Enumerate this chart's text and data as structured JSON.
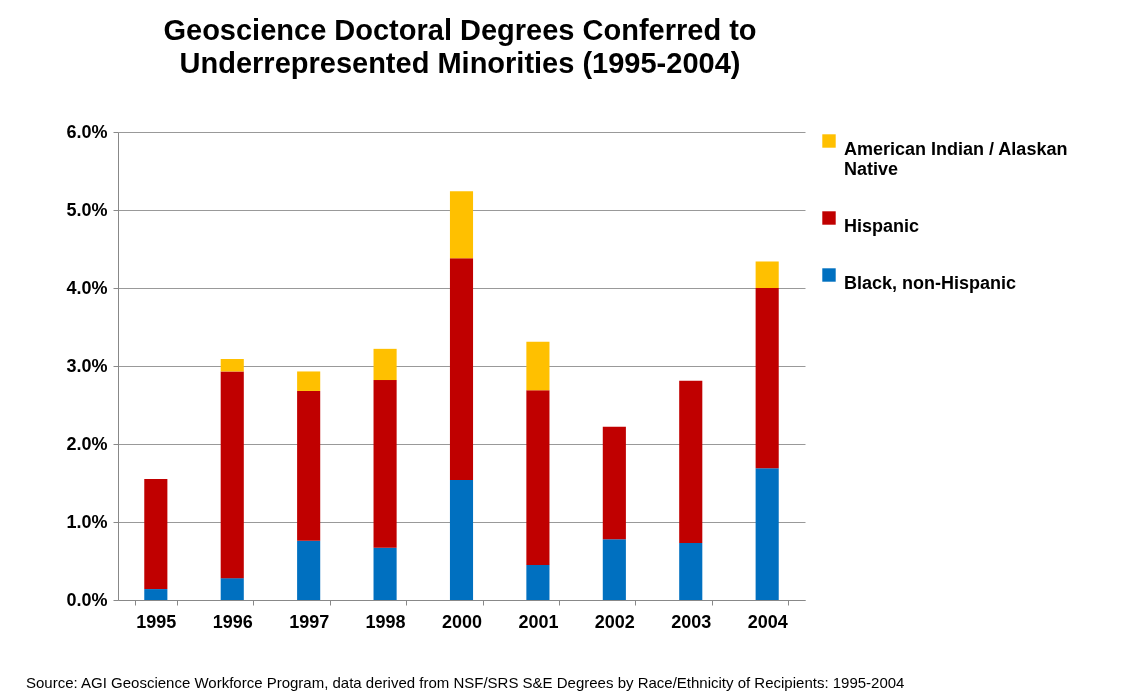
{
  "chart_data": {
    "type": "bar",
    "title": "Geoscience Doctoral Degrees Conferred to Underrepresented Minorities (1995-2004)",
    "categories": [
      "1995",
      "1996",
      "1997",
      "1998",
      "2000",
      "2001",
      "2002",
      "2003",
      "2004"
    ],
    "stacked": true,
    "series": [
      {
        "name": "Black, non-Hispanic",
        "color": "#0070c0",
        "values": [
          0.14,
          0.28,
          0.76,
          0.67,
          1.54,
          0.45,
          0.78,
          0.73,
          1.69
        ]
      },
      {
        "name": "Hispanic",
        "color": "#c00000",
        "values": [
          1.41,
          2.65,
          1.92,
          2.15,
          2.84,
          2.24,
          1.44,
          2.08,
          2.31
        ]
      },
      {
        "name": "American Indian / Alaskan Native",
        "color": "#ffc000",
        "values": [
          null,
          0.16,
          0.25,
          0.4,
          0.86,
          0.62,
          null,
          null,
          0.34
        ]
      }
    ],
    "ylim": [
      0,
      6
    ],
    "yticks": [
      {
        "value": 0,
        "label": "0.0%"
      },
      {
        "value": 1,
        "label": "1.0%"
      },
      {
        "value": 2,
        "label": "2.0%"
      },
      {
        "value": 3,
        "label": "3.0%"
      },
      {
        "value": 4,
        "label": "4.0%"
      },
      {
        "value": 5,
        "label": "5.0%"
      },
      {
        "value": 6,
        "label": "6.0%"
      }
    ],
    "grid": "y",
    "legend": "right",
    "annotations": [
      "Source: AGI Geoscience Workforce Program, data derived from NSF/SRS S&E Degrees  by Race/Ethnicity of Recipients: 1995-2004"
    ]
  }
}
